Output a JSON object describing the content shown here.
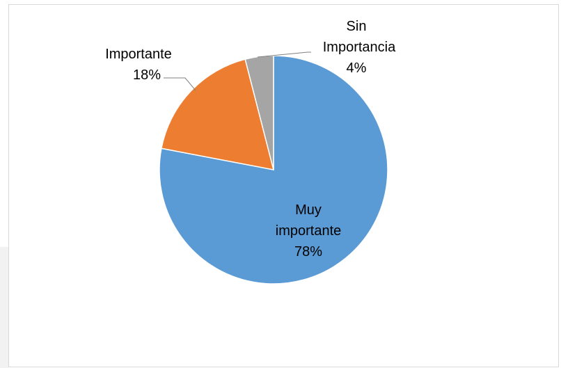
{
  "chart_data": {
    "type": "pie",
    "title": "",
    "slices": [
      {
        "name": "Muy importante",
        "value": 78,
        "label": "78%",
        "color": "#5B9BD5"
      },
      {
        "name": "Importante",
        "value": 18,
        "label": "18%",
        "color": "#ED7D31"
      },
      {
        "name": "Sin Importancia",
        "value": 4,
        "label": "4%",
        "color": "#A5A5A5"
      }
    ],
    "legend": "none",
    "data_labels": "category name and percentage"
  },
  "labels": {
    "muy_line1": "Muy",
    "muy_line2": "importante",
    "muy_pct": "78%",
    "imp_line1": "Importante",
    "imp_pct": "18%",
    "sin_line1": "Sin",
    "sin_line2": "Importancia",
    "sin_pct": "4%"
  }
}
